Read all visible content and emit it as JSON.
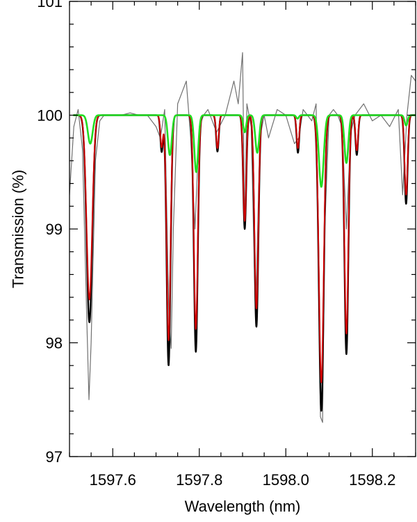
{
  "chart_data": {
    "type": "line",
    "xlabel": "Wavelength (nm)",
    "ylabel": "Transmission (%)",
    "xlim": [
      1597.5,
      1598.3
    ],
    "ylim": [
      97,
      101
    ],
    "x_ticks": [
      1597.6,
      1597.8,
      1598.0,
      1598.2
    ],
    "x_tick_labels": [
      "1597.6",
      "1597.8",
      "1598.0",
      "1598.2"
    ],
    "y_ticks": [
      97,
      98,
      99,
      100,
      101
    ],
    "y_tick_labels": [
      "97",
      "98",
      "99",
      "100",
      "101"
    ],
    "grid": false,
    "legend": "none",
    "series": [
      {
        "color": "#707070",
        "x": [
          1597.5,
          1597.51,
          1597.52,
          1597.53,
          1597.54,
          1597.545,
          1597.55,
          1597.56,
          1597.57,
          1597.58,
          1597.6,
          1597.62,
          1597.64,
          1597.66,
          1597.68,
          1597.7,
          1597.71,
          1597.72,
          1597.73,
          1597.735,
          1597.74,
          1597.75,
          1597.76,
          1597.77,
          1597.78,
          1597.79,
          1597.8,
          1597.81,
          1597.82,
          1597.84,
          1597.86,
          1597.88,
          1597.89,
          1597.9,
          1597.905,
          1597.91,
          1597.92,
          1597.93,
          1597.94,
          1597.95,
          1597.96,
          1597.98,
          1598.0,
          1598.02,
          1598.03,
          1598.04,
          1598.06,
          1598.07,
          1598.08,
          1598.085,
          1598.09,
          1598.1,
          1598.11,
          1598.12,
          1598.13,
          1598.14,
          1598.15,
          1598.16,
          1598.18,
          1598.2,
          1598.22,
          1598.24,
          1598.26,
          1598.27,
          1598.28,
          1598.29,
          1598.3
        ],
        "values": [
          99.3,
          99.9,
          100.05,
          99.7,
          98.2,
          97.5,
          98.0,
          99.6,
          99.95,
          100.0,
          100.0,
          100.0,
          100.02,
          100.0,
          100.0,
          99.9,
          99.8,
          100.05,
          98.2,
          97.95,
          99.0,
          100.1,
          100.2,
          100.3,
          99.8,
          99.0,
          99.9,
          100.0,
          100.05,
          99.85,
          100.0,
          100.3,
          100.1,
          100.55,
          99.0,
          100.1,
          99.9,
          98.2,
          99.8,
          100.0,
          99.8,
          100.05,
          100.0,
          99.75,
          99.8,
          100.05,
          99.95,
          100.1,
          97.35,
          97.3,
          99.0,
          100.0,
          100.05,
          100.0,
          99.9,
          99.0,
          99.85,
          100.0,
          100.1,
          99.95,
          100.0,
          99.9,
          100.05,
          99.3,
          100.0,
          100.35,
          100.3
        ]
      },
      {
        "color": "#000000",
        "baseline": 100.0,
        "lines": [
          {
            "center": 1597.546,
            "depth": 1.82,
            "width": 0.0065
          },
          {
            "center": 1597.729,
            "depth": 2.2,
            "width": 0.0045
          },
          {
            "center": 1597.713,
            "depth": 0.32,
            "width": 0.003
          },
          {
            "center": 1597.792,
            "depth": 2.08,
            "width": 0.0045
          },
          {
            "center": 1597.842,
            "depth": 0.32,
            "width": 0.003
          },
          {
            "center": 1597.905,
            "depth": 1.0,
            "width": 0.0035
          },
          {
            "center": 1597.932,
            "depth": 1.86,
            "width": 0.0045
          },
          {
            "center": 1598.028,
            "depth": 0.33,
            "width": 0.003
          },
          {
            "center": 1598.082,
            "depth": 2.6,
            "width": 0.0055
          },
          {
            "center": 1598.14,
            "depth": 2.1,
            "width": 0.0045
          },
          {
            "center": 1598.164,
            "depth": 0.35,
            "width": 0.003
          },
          {
            "center": 1598.278,
            "depth": 0.78,
            "width": 0.0035
          }
        ]
      },
      {
        "color": "#cc0000",
        "baseline": 100.0,
        "lines": [
          {
            "center": 1597.546,
            "depth": 1.62,
            "width": 0.0065
          },
          {
            "center": 1597.729,
            "depth": 1.98,
            "width": 0.0045
          },
          {
            "center": 1597.713,
            "depth": 0.28,
            "width": 0.003
          },
          {
            "center": 1597.792,
            "depth": 1.88,
            "width": 0.0045
          },
          {
            "center": 1597.842,
            "depth": 0.29,
            "width": 0.003
          },
          {
            "center": 1597.905,
            "depth": 0.93,
            "width": 0.0035
          },
          {
            "center": 1597.932,
            "depth": 1.7,
            "width": 0.0045
          },
          {
            "center": 1598.028,
            "depth": 0.29,
            "width": 0.003
          },
          {
            "center": 1598.082,
            "depth": 2.35,
            "width": 0.0055
          },
          {
            "center": 1598.14,
            "depth": 1.92,
            "width": 0.0045
          },
          {
            "center": 1598.164,
            "depth": 0.31,
            "width": 0.003
          },
          {
            "center": 1598.278,
            "depth": 0.7,
            "width": 0.0035
          }
        ]
      },
      {
        "color": "#22dd22",
        "baseline": 100.0,
        "lines": [
          {
            "center": 1597.548,
            "depth": 0.25,
            "width": 0.0055
          },
          {
            "center": 1597.732,
            "depth": 0.35,
            "width": 0.0045
          },
          {
            "center": 1597.793,
            "depth": 0.5,
            "width": 0.0045
          },
          {
            "center": 1597.905,
            "depth": 0.15,
            "width": 0.0035
          },
          {
            "center": 1597.934,
            "depth": 0.33,
            "width": 0.0045
          },
          {
            "center": 1598.027,
            "depth": 0.03,
            "width": 0.003
          },
          {
            "center": 1598.082,
            "depth": 0.63,
            "width": 0.0055
          },
          {
            "center": 1598.14,
            "depth": 0.42,
            "width": 0.0045
          },
          {
            "center": 1598.278,
            "depth": 0.09,
            "width": 0.0035
          }
        ]
      }
    ]
  }
}
